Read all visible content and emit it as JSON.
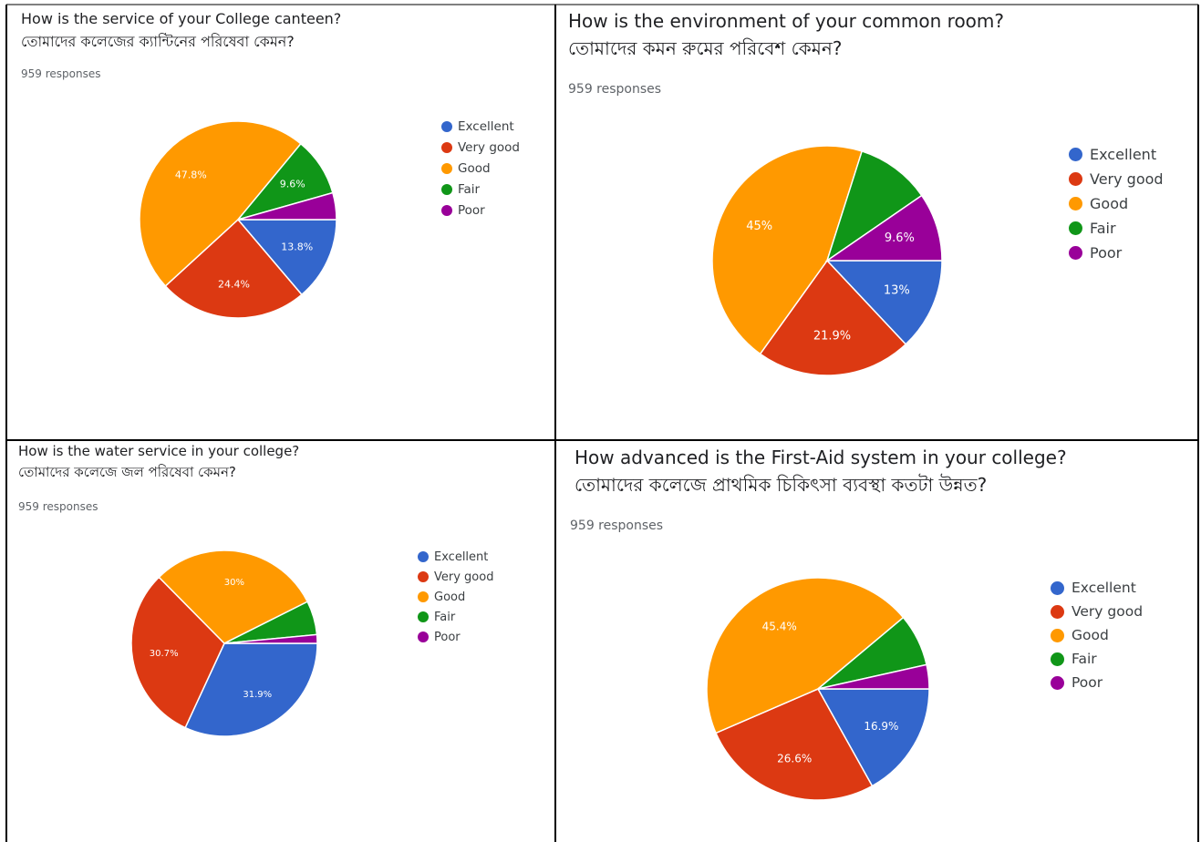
{
  "legend_labels": [
    "Excellent",
    "Very good",
    "Good",
    "Fair",
    "Poor"
  ],
  "colors": [
    "#3366cc",
    "#dc3912",
    "#ff9900",
    "#109618",
    "#990099"
  ],
  "chart_data": [
    {
      "type": "pie",
      "title": "How is the service of your College canteen?",
      "subtitle": "তোমাদের কলেজের ক্যান্টিনের পরিষেবা কেমন?",
      "responses": "959 responses",
      "categories": [
        "Excellent",
        "Very good",
        "Good",
        "Fair",
        "Poor"
      ],
      "values": [
        13.8,
        24.4,
        47.8,
        9.6,
        4.4
      ],
      "data_labels": [
        "13.8%",
        "24.4%",
        "47.8%",
        "9.6%",
        ""
      ],
      "legend": "right"
    },
    {
      "type": "pie",
      "title": "How is the environment of your common room?",
      "subtitle": "তোমাদের কমন রুমের পরিবেশ কেমন?",
      "responses": "959 responses",
      "categories": [
        "Excellent",
        "Very good",
        "Good",
        "Fair",
        "Poor"
      ],
      "values": [
        13,
        21.9,
        45,
        10.5,
        9.6
      ],
      "data_labels": [
        "13%",
        "21.9%",
        "45%",
        "",
        "9.6%"
      ],
      "legend": "right"
    },
    {
      "type": "pie",
      "title": "How is the water service in your college?",
      "subtitle": "তোমাদের কলেজে জল পরিষেবা কেমন?",
      "responses": "959 responses",
      "categories": [
        "Excellent",
        "Very good",
        "Good",
        "Fair",
        "Poor"
      ],
      "values": [
        31.9,
        30.7,
        30,
        5.9,
        1.5
      ],
      "data_labels": [
        "31.9%",
        "30.7%",
        "30%",
        "",
        ""
      ],
      "legend": "right"
    },
    {
      "type": "pie",
      "title": "How advanced is the First-Aid system in your college?",
      "subtitle": "তোমাদের কলেজে প্রাথমিক চিকিৎসা ব্যবস্থা কতটা উন্নত?",
      "responses": "959 responses",
      "categories": [
        "Excellent",
        "Very good",
        "Good",
        "Fair",
        "Poor"
      ],
      "values": [
        16.9,
        26.6,
        45.4,
        7.6,
        3.5
      ],
      "data_labels": [
        "16.9%",
        "26.6%",
        "45.4%",
        "",
        ""
      ],
      "legend": "right"
    }
  ]
}
